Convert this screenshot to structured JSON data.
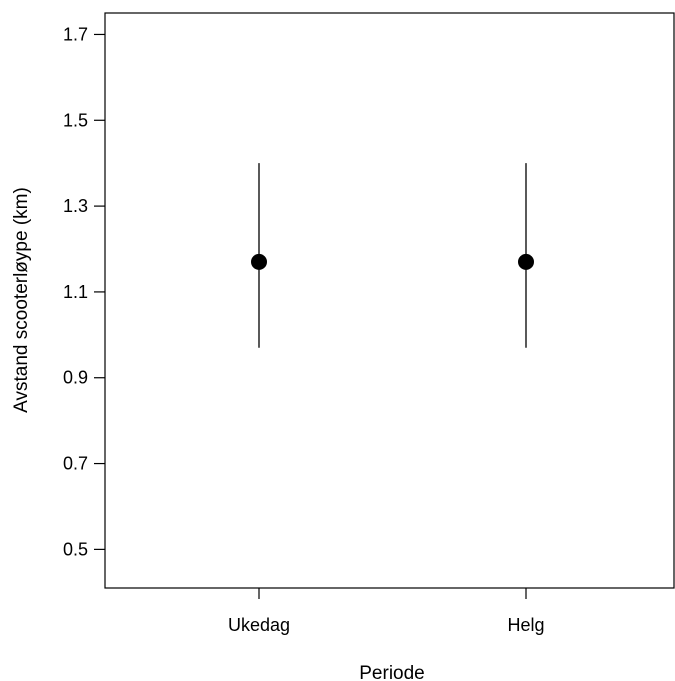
{
  "chart_data": {
    "type": "scatter",
    "title": "",
    "xlabel": "Periode",
    "ylabel": "Avstand scooterløype (km)",
    "categories": [
      "Ukedag",
      "Helg"
    ],
    "points": [
      {
        "category": "Ukedag",
        "y": 1.17,
        "lower": 0.97,
        "upper": 1.4
      },
      {
        "category": "Helg",
        "y": 1.17,
        "lower": 0.97,
        "upper": 1.4
      }
    ],
    "ylim": [
      0.41,
      1.75
    ],
    "y_ticks": [
      0.5,
      0.7,
      0.9,
      1.1,
      1.3,
      1.5,
      1.7
    ],
    "y_tick_labels": [
      "0.5",
      "0.7",
      "0.9",
      "1.1",
      "1.3",
      "1.5",
      "1.7"
    ],
    "grid": false,
    "legend": "none",
    "colors": {
      "point": "#000000",
      "line": "#000000"
    }
  }
}
